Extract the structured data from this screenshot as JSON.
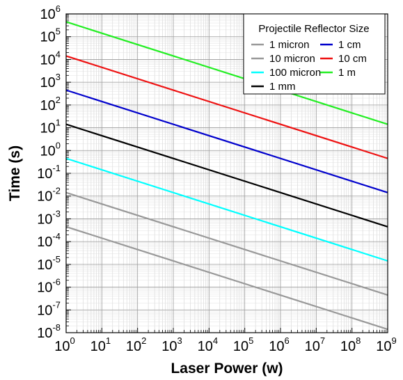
{
  "chart_data": {
    "type": "line",
    "xlabel": "Laser Power (w)",
    "ylabel": "Time (s)",
    "xscale": "log",
    "yscale": "log",
    "xlim": [
      1,
      1000000000
    ],
    "ylim": [
      1e-08,
      1000000
    ],
    "x_ticks": [
      {
        "base": "10",
        "exp": "0"
      },
      {
        "base": "10",
        "exp": "1"
      },
      {
        "base": "10",
        "exp": "2"
      },
      {
        "base": "10",
        "exp": "3"
      },
      {
        "base": "10",
        "exp": "4"
      },
      {
        "base": "10",
        "exp": "5"
      },
      {
        "base": "10",
        "exp": "6"
      },
      {
        "base": "10",
        "exp": "7"
      },
      {
        "base": "10",
        "exp": "8"
      },
      {
        "base": "10",
        "exp": "9"
      }
    ],
    "y_ticks": [
      {
        "base": "10",
        "exp": "-8"
      },
      {
        "base": "10",
        "exp": "-7"
      },
      {
        "base": "10",
        "exp": "-6"
      },
      {
        "base": "10",
        "exp": "-5"
      },
      {
        "base": "10",
        "exp": "-4"
      },
      {
        "base": "10",
        "exp": "-3"
      },
      {
        "base": "10",
        "exp": "-2"
      },
      {
        "base": "10",
        "exp": "-1"
      },
      {
        "base": "10",
        "exp": "0"
      },
      {
        "base": "10",
        "exp": "1"
      },
      {
        "base": "10",
        "exp": "2"
      },
      {
        "base": "10",
        "exp": "3"
      },
      {
        "base": "10",
        "exp": "4"
      },
      {
        "base": "10",
        "exp": "5"
      },
      {
        "base": "10",
        "exp": "6"
      }
    ],
    "grid": true,
    "legend": {
      "title": "Projectile Reflector Size",
      "placement": "top-right",
      "columns": 2
    },
    "series": [
      {
        "name": "1 micron",
        "color": "#999999",
        "x": [
          1,
          1000000000
        ],
        "y": [
          0.00045,
          1.4e-08
        ]
      },
      {
        "name": "10 micron",
        "color": "#999999",
        "x": [
          1,
          1000000000
        ],
        "y": [
          0.0142,
          4.5e-07
        ]
      },
      {
        "name": "100 micron",
        "color": "#00ffff",
        "x": [
          1,
          1000000000
        ],
        "y": [
          0.45,
          1.42e-05
        ]
      },
      {
        "name": "1 mm",
        "color": "#000000",
        "x": [
          1,
          1000000000
        ],
        "y": [
          14.2,
          0.00045
        ]
      },
      {
        "name": "1 cm",
        "color": "#0000cc",
        "x": [
          1,
          1000000000
        ],
        "y": [
          450,
          0.0142
        ]
      },
      {
        "name": "10 cm",
        "color": "#ee1111",
        "x": [
          1,
          1000000000
        ],
        "y": [
          14200,
          0.45
        ]
      },
      {
        "name": "1 m",
        "color": "#22ee22",
        "x": [
          1,
          1000000000
        ],
        "y": [
          450000,
          14.2
        ]
      }
    ]
  }
}
